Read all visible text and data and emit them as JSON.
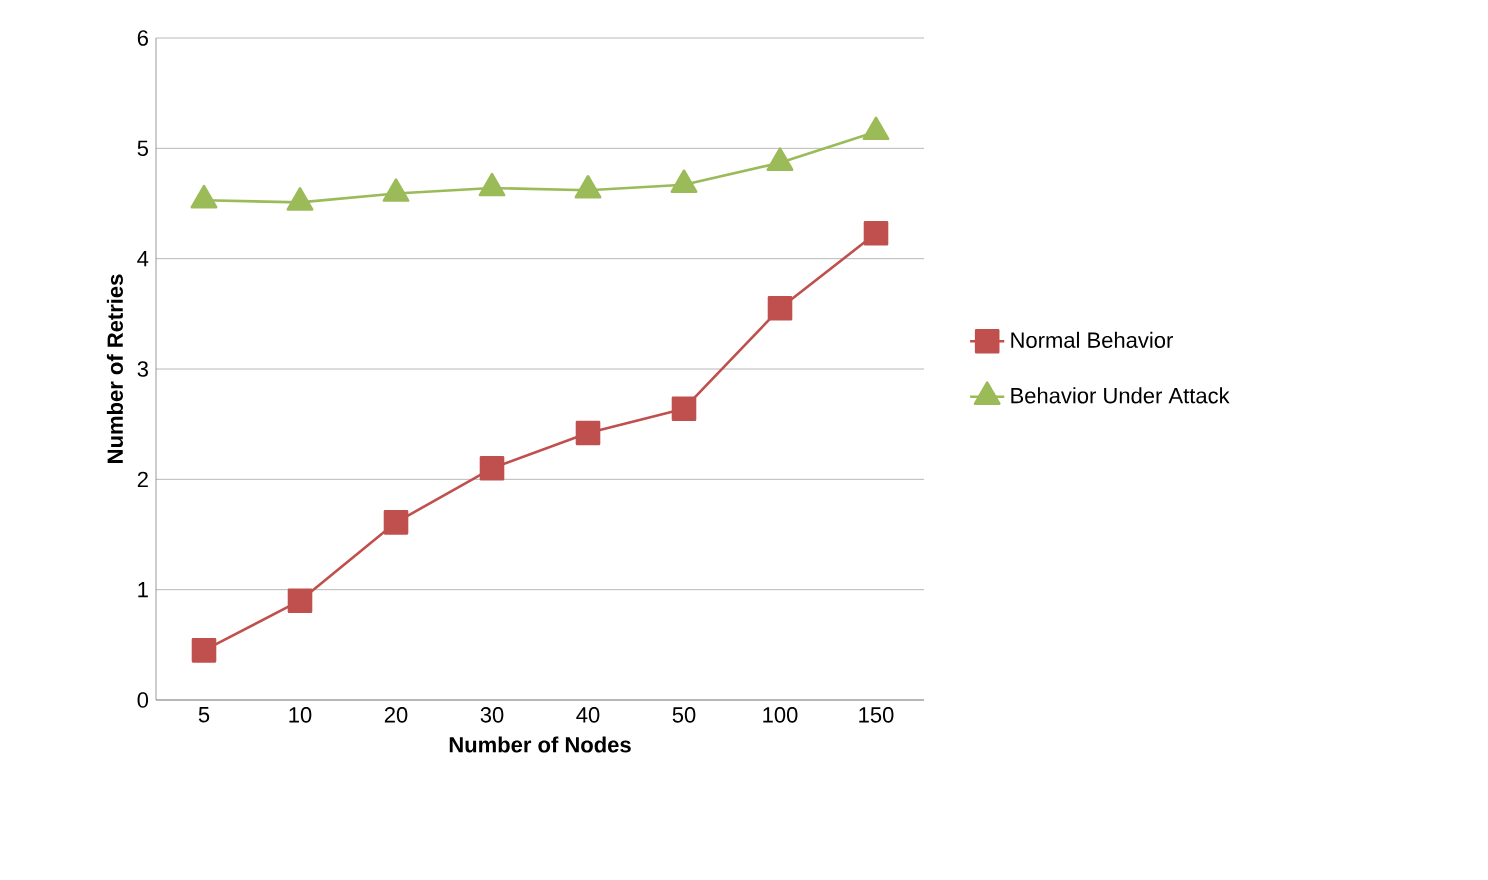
{
  "chart_data": {
    "type": "line",
    "xlabel": "Number of Nodes",
    "ylabel": "Number of Retries",
    "categories": [
      "5",
      "10",
      "20",
      "30",
      "40",
      "50",
      "100",
      "150"
    ],
    "series": [
      {
        "name": "Normal Behavior",
        "color": "#c0504d",
        "marker": "square",
        "values": [
          0.45,
          0.9,
          1.61,
          2.1,
          2.42,
          2.64,
          3.55,
          4.23
        ]
      },
      {
        "name": "Behavior Under Attack",
        "color": "#9bbb59",
        "marker": "triangle",
        "values": [
          4.53,
          4.51,
          4.59,
          4.64,
          4.62,
          4.67,
          4.87,
          5.15
        ]
      }
    ],
    "ylim": [
      0,
      6
    ],
    "yticks": [
      0,
      1,
      2,
      3,
      4,
      5,
      6
    ],
    "grid": "y",
    "legend": "right"
  }
}
